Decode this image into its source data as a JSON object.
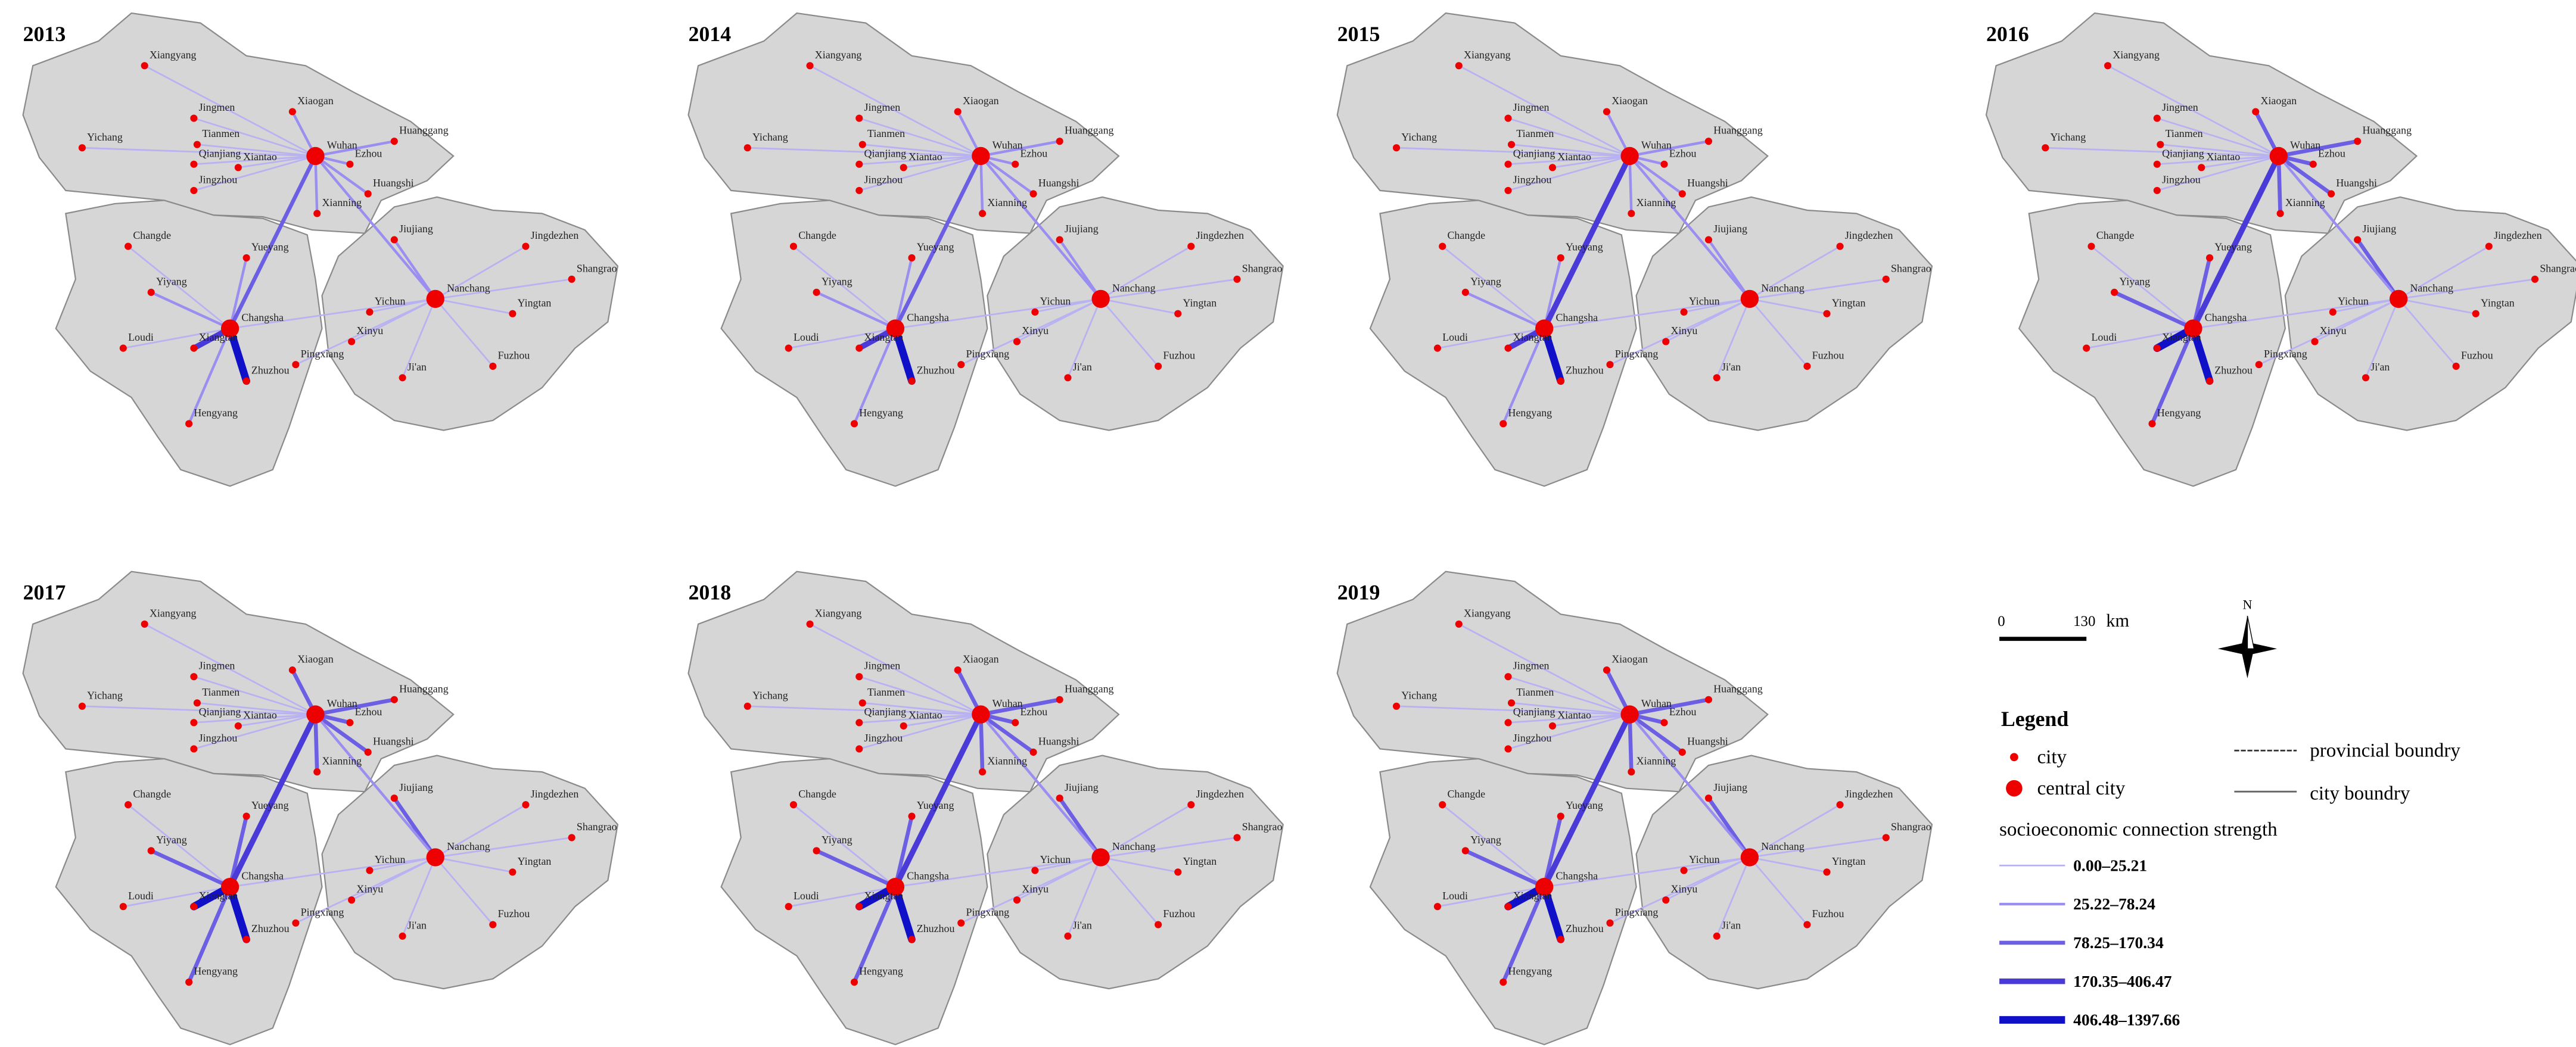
{
  "maps": [
    {
      "year": "2013"
    },
    {
      "year": "2014"
    },
    {
      "year": "2015"
    },
    {
      "year": "2016"
    },
    {
      "year": "2017"
    },
    {
      "year": "2018"
    },
    {
      "year": "2019"
    }
  ],
  "cities": [
    "Xiangyang",
    "Yichang",
    "Jingmen",
    "Xiaogan",
    "Tianmen",
    "Qianjiang",
    "Xiantao",
    "Jingzhou",
    "Wuhan",
    "Ezhou",
    "Huanggang",
    "Huangshi",
    "Xianning",
    "Yueyang",
    "Changde",
    "Yiyang",
    "Changsha",
    "Loudi",
    "Xiangtan",
    "Zhuzhou",
    "Hengyang",
    "Pingxiang",
    "Xinyu",
    "Ji'an",
    "Yichun",
    "Jiujiang",
    "Nanchang",
    "Jingdezhen",
    "Shangrao",
    "Yingtan",
    "Fuzhou"
  ],
  "scale_bar": {
    "start": "0",
    "end": "130",
    "unit": "km"
  },
  "north": "N",
  "legend": {
    "title": "Legend",
    "city": "city",
    "central_city": "central city",
    "provincial_boundary": "provincial boundry",
    "city_boundary": "city boundry",
    "strength_title": "socioeconomic connection strength",
    "classes": [
      "0.00–25.21",
      "25.22–78.24",
      "78.25–170.34",
      "170.35–406.47",
      "406.48–1397.66"
    ]
  }
}
